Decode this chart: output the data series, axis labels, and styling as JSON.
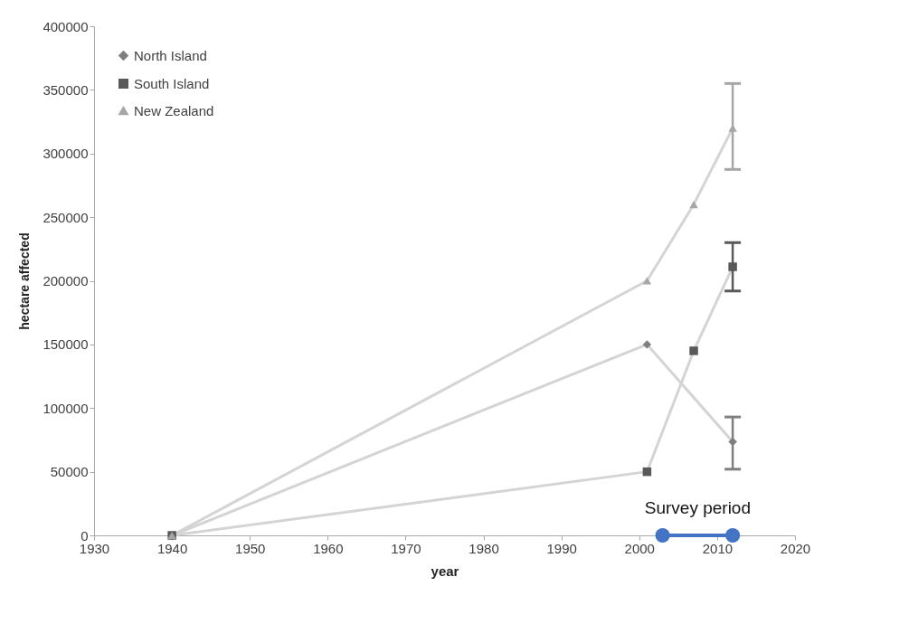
{
  "chart_data": {
    "type": "line",
    "xlabel": "year",
    "ylabel": "hectare affected",
    "xlim": [
      1930,
      2020
    ],
    "xticks": [
      1930,
      1940,
      1950,
      1960,
      1970,
      1980,
      1990,
      2000,
      2010,
      2020
    ],
    "ylim": [
      0,
      400000
    ],
    "yticks": [
      0,
      50000,
      100000,
      150000,
      200000,
      250000,
      300000,
      350000,
      400000
    ],
    "grid": false,
    "legend": "top left",
    "series": [
      {
        "name": "North Island",
        "color": "#7f7f7f",
        "marker": "diamond",
        "x": [
          1940,
          2001,
          2012
        ],
        "values": [
          0,
          150000,
          73500
        ],
        "errors": [
          null,
          null,
          [
            52000,
            93000
          ]
        ]
      },
      {
        "name": "South Island",
        "color": "#595959",
        "marker": "square",
        "x": [
          1940,
          2001,
          2007,
          2012
        ],
        "values": [
          0,
          50000,
          145000,
          211000
        ],
        "errors": [
          null,
          null,
          null,
          [
            192000,
            230000
          ]
        ]
      },
      {
        "name": "New Zealand",
        "color": "#a6a6a6",
        "marker": "triangle",
        "x": [
          1940,
          2001,
          2007,
          2012
        ],
        "values": [
          0,
          200000,
          260000,
          320000
        ],
        "errors": [
          null,
          null,
          null,
          [
            287500,
            355000
          ]
        ]
      },
      {
        "color": "#4472c4",
        "marker": "circle",
        "x": [
          2003,
          2012
        ],
        "values": [
          0,
          0
        ]
      }
    ],
    "annotations": [
      {
        "text": "Survey period",
        "x": 2007.5,
        "y": 0
      }
    ]
  }
}
